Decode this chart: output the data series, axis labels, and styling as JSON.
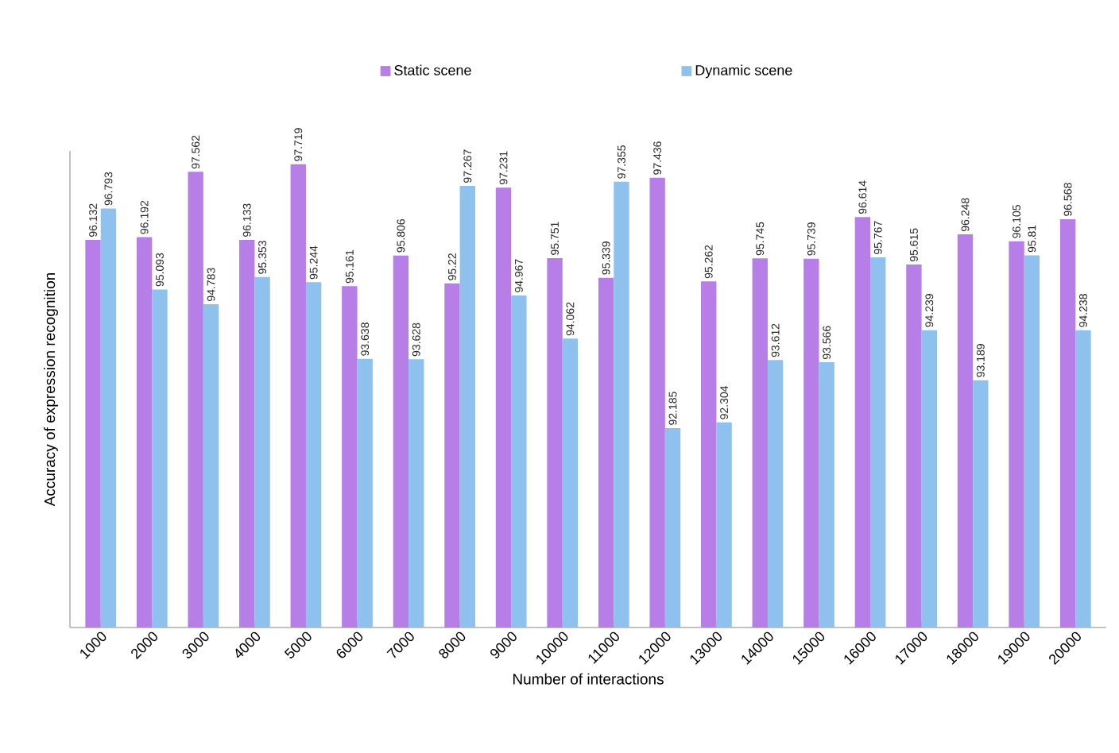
{
  "chart_data": {
    "type": "bar",
    "xlabel": "Number of interactions",
    "ylabel": "Accuracy of expression recognition",
    "categories": [
      "1000",
      "2000",
      "3000",
      "4000",
      "5000",
      "6000",
      "7000",
      "8000",
      "9000",
      "10000",
      "11000",
      "12000",
      "13000",
      "14000",
      "15000",
      "16000",
      "17000",
      "18000",
      "19000",
      "20000"
    ],
    "series": [
      {
        "name": "Static scene",
        "color": "#b77ee8",
        "values": [
          96.132,
          96.192,
          97.562,
          96.133,
          97.719,
          95.161,
          95.806,
          95.22,
          97.231,
          95.751,
          95.339,
          97.436,
          95.262,
          95.745,
          95.739,
          96.614,
          95.615,
          96.248,
          96.105,
          96.568
        ]
      },
      {
        "name": "Dynamic scene",
        "color": "#8ec1ee",
        "values": [
          96.793,
          95.093,
          94.783,
          95.353,
          95.244,
          93.638,
          93.628,
          97.267,
          94.967,
          94.062,
          97.355,
          92.185,
          92.304,
          93.612,
          93.566,
          95.767,
          94.239,
          93.189,
          95.81,
          94.238
        ]
      }
    ],
    "ylim": [
      88,
      98
    ],
    "data_labels": true,
    "legend": "top",
    "tick_labels": "x"
  }
}
